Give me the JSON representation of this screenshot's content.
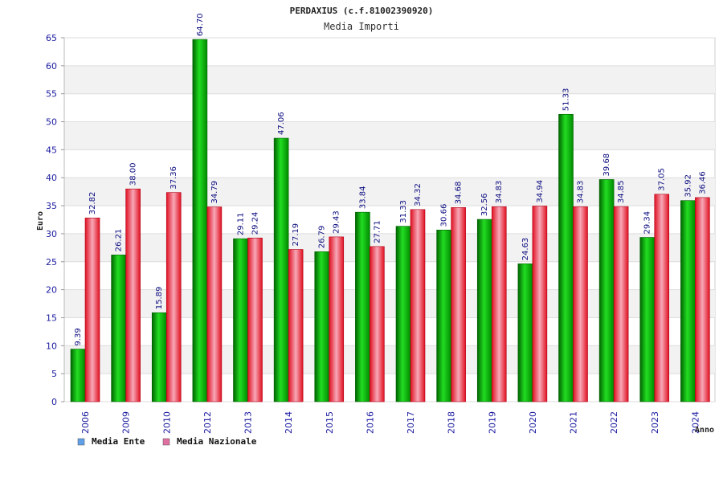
{
  "chart_data": {
    "type": "bar",
    "title": "PERDAXIUS (c.f.81002390920)",
    "subtitle": "Media Importi",
    "xlabel": "Anno",
    "ylabel": "Euro",
    "ylim": [
      0,
      65
    ],
    "yticks": [
      0,
      5,
      10,
      15,
      20,
      25,
      30,
      35,
      40,
      45,
      50,
      55,
      60,
      65
    ],
    "grid": true,
    "legend_position": "bottom-left",
    "categories": [
      "2006",
      "2009",
      "2010",
      "2012",
      "2013",
      "2014",
      "2015",
      "2016",
      "2017",
      "2018",
      "2019",
      "2020",
      "2021",
      "2022",
      "2023",
      "2024"
    ],
    "series": [
      {
        "name": "Media Ente",
        "color": "#00b400",
        "legend_color": "#5fa0e8",
        "values": [
          9.39,
          26.21,
          15.89,
          64.7,
          29.11,
          47.06,
          26.79,
          33.84,
          31.33,
          30.66,
          32.56,
          24.63,
          51.33,
          39.68,
          29.34,
          35.92
        ],
        "labels": [
          "9.39",
          "26.21",
          "15.89",
          "64.70",
          "29.11",
          "47.06",
          "26.79",
          "33.84",
          "31.33",
          "30.66",
          "32.56",
          "24.63",
          "51.33",
          "39.68",
          "29.34",
          "35.92"
        ]
      },
      {
        "name": "Media Nazionale",
        "color": "#e8202a",
        "legend_color": "#e070a0",
        "values": [
          32.82,
          38.0,
          37.36,
          34.79,
          29.24,
          27.19,
          29.43,
          27.71,
          34.32,
          34.68,
          34.83,
          34.94,
          34.83,
          34.85,
          37.05,
          36.46
        ],
        "labels": [
          "32.82",
          "38.00",
          "37.36",
          "34.79",
          "29.24",
          "27.19",
          "29.43",
          "27.71",
          "34.32",
          "34.68",
          "34.83",
          "34.94",
          "34.83",
          "34.85",
          "37.05",
          "36.46"
        ]
      }
    ]
  }
}
